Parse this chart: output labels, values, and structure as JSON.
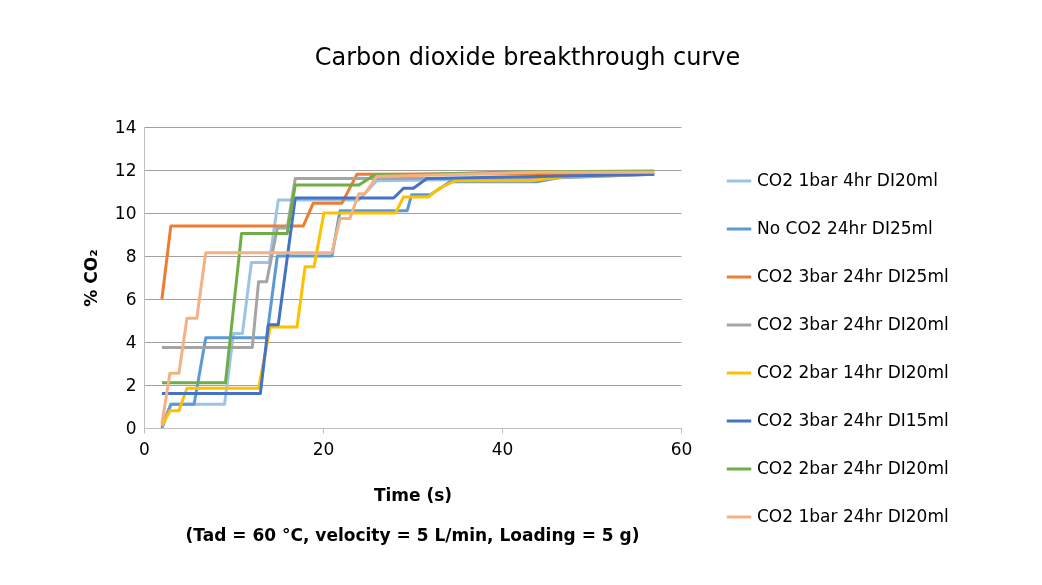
{
  "chart_data": {
    "type": "line",
    "title": "Carbon dioxide breakthrough curve",
    "xlabel": "Time (s)",
    "ylabel": "% CO₂",
    "annotations": [
      "(Tad = 60 °C, velocity = 5 L/min, Loading = 5 g)"
    ],
    "xlim": [
      0,
      60
    ],
    "xticks": [
      0,
      20,
      40,
      60
    ],
    "ylim": [
      0,
      14
    ],
    "yticks": [
      0,
      2,
      4,
      6,
      8,
      10,
      12,
      14
    ],
    "grid": "y",
    "legend": "right",
    "marker": "none",
    "line_style": "solid",
    "series": [
      {
        "name": "CO2 1bar 4hr DI20ml",
        "color": "#9dc3e6",
        "x": [
          2,
          3,
          9,
          10,
          11,
          12,
          14,
          15,
          24,
          26,
          44,
          57
        ],
        "values": [
          0.1,
          1.1,
          1.1,
          4.4,
          4.4,
          7.7,
          7.7,
          10.6,
          10.6,
          11.5,
          11.6,
          11.8
        ]
      },
      {
        "name": "No CO2 24hr DI25ml",
        "color": "#5b9bd5",
        "x": [
          2,
          3,
          5.6,
          6.9,
          13.7,
          14.9,
          21,
          21.9,
          29.4,
          29.9,
          32,
          34.2,
          43.9,
          47,
          57
        ],
        "values": [
          0,
          1.1,
          1.1,
          4.2,
          4.2,
          8.0,
          8.0,
          10.1,
          10.1,
          10.85,
          10.85,
          11.45,
          11.45,
          11.7,
          11.8
        ]
      },
      {
        "name": "CO2 3bar 24hr DI25ml",
        "color": "#ed7d31",
        "x": [
          2,
          3,
          17.8,
          18.9,
          22.1,
          23.8,
          57
        ],
        "values": [
          6.0,
          9.4,
          9.4,
          10.45,
          10.45,
          11.8,
          11.85
        ]
      },
      {
        "name": "CO2 3bar 24hr DI20ml",
        "color": "#a5a5a5",
        "x": [
          2,
          12.1,
          12.8,
          13.7,
          14.9,
          16,
          16.9,
          44,
          57
        ],
        "values": [
          3.75,
          3.75,
          6.8,
          6.8,
          9.3,
          9.3,
          11.6,
          11.6,
          11.8
        ]
      },
      {
        "name": "CO2 2bar 14hr DI20ml",
        "color": "#ffc000",
        "x": [
          2,
          2.9,
          3.9,
          4.8,
          12.8,
          14.1,
          17.1,
          18,
          19,
          20.1,
          28.1,
          29,
          31.8,
          33,
          34.8,
          43.2,
          47,
          57
        ],
        "values": [
          0.1,
          0.8,
          0.8,
          1.85,
          1.85,
          4.7,
          4.7,
          7.5,
          7.5,
          10,
          10,
          10.75,
          10.75,
          11.15,
          11.5,
          11.5,
          11.7,
          11.85
        ]
      },
      {
        "name": "CO2 3bar 24hr DI15ml",
        "color": "#4472c4",
        "x": [
          2,
          13,
          13.9,
          15,
          16.9,
          27.9,
          29,
          30.1,
          31.6,
          44,
          57
        ],
        "values": [
          1.6,
          1.6,
          4.8,
          4.8,
          10.7,
          10.7,
          11.15,
          11.15,
          11.6,
          11.7,
          11.8
        ]
      },
      {
        "name": "CO2 2bar 24hr DI20ml",
        "color": "#70ad47",
        "x": [
          2,
          9.1,
          10.9,
          16,
          16.9,
          24,
          25.7,
          40,
          57
        ],
        "values": [
          2.1,
          2.1,
          9.05,
          9.05,
          11.3,
          11.3,
          11.75,
          11.9,
          11.95
        ]
      },
      {
        "name": "CO2 1bar 24hr DI20ml",
        "color": "#f4b183",
        "x": [
          2,
          2.9,
          3.9,
          4.8,
          5.9,
          6.9,
          21,
          21.9,
          23,
          24,
          24.7,
          26,
          44,
          57
        ],
        "values": [
          0.2,
          2.55,
          2.55,
          5.1,
          5.1,
          8.15,
          8.15,
          9.75,
          9.75,
          10.9,
          10.9,
          11.7,
          11.9,
          11.9
        ]
      }
    ]
  }
}
